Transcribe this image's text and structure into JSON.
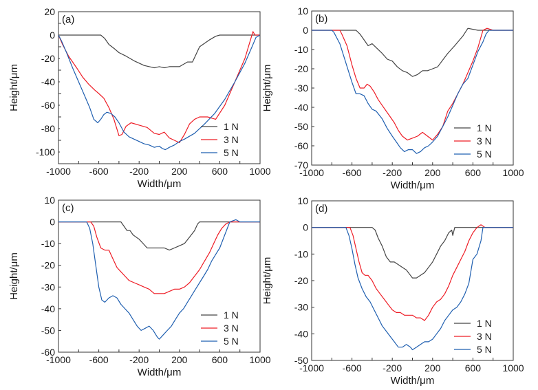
{
  "figure": {
    "xlabel": "Width/μm",
    "ylabel": "Height/μm"
  },
  "colors": {
    "1 N": "#444444",
    "3 N": "#ee1c25",
    "5 N": "#1f5fb0"
  },
  "chart_data": [
    {
      "panel": "(a)",
      "type": "line",
      "xlabel": "Width/μm",
      "ylabel": "Height/μm",
      "xlim": [
        -1000,
        1000
      ],
      "ylim": [
        -110,
        20
      ],
      "xticks": [
        "-1000",
        "-600",
        "-200",
        "200",
        "600",
        "1000"
      ],
      "yticks": [
        "20",
        "0",
        "-20",
        "-40",
        "-60",
        "-80",
        "-100"
      ],
      "legend_position": "bottom-right",
      "series": [
        {
          "name": "1 N",
          "x": [
            -1000,
            -650,
            -580,
            -540,
            -500,
            -440,
            -400,
            -330,
            -250,
            -150,
            -50,
            0,
            50,
            100,
            150,
            200,
            280,
            330,
            400,
            500,
            560,
            600,
            900,
            1000
          ],
          "y": [
            0,
            0,
            0,
            -3,
            -8,
            -12,
            -15,
            -18,
            -22,
            -26,
            -28,
            -27,
            -28,
            -27,
            -27,
            -27,
            -23,
            -23,
            -10,
            -4,
            -1,
            0,
            0,
            0
          ]
        },
        {
          "name": "3 N",
          "x": [
            -1000,
            -960,
            -900,
            -820,
            -760,
            -700,
            -640,
            -600,
            -550,
            -500,
            -450,
            -400,
            -370,
            -330,
            -280,
            -200,
            -120,
            -50,
            0,
            50,
            100,
            150,
            200,
            250,
            300,
            350,
            400,
            480,
            560,
            650,
            750,
            850,
            930,
            950,
            980,
            1000
          ],
          "y": [
            0,
            -8,
            -18,
            -28,
            -36,
            -42,
            -47,
            -50,
            -54,
            -62,
            -72,
            -86,
            -85,
            -78,
            -75,
            -77,
            -79,
            -84,
            -85,
            -83,
            -88,
            -90,
            -92,
            -85,
            -76,
            -72,
            -70,
            -70,
            -72,
            -60,
            -40,
            -20,
            3,
            0,
            0,
            0
          ]
        },
        {
          "name": "5 N",
          "x": [
            -1000,
            -970,
            -920,
            -860,
            -800,
            -740,
            -690,
            -650,
            -610,
            -580,
            -550,
            -520,
            -480,
            -440,
            -400,
            -350,
            -300,
            -250,
            -200,
            -150,
            -100,
            -50,
            0,
            30,
            60,
            100,
            150,
            200,
            250,
            350,
            450,
            550,
            650,
            750,
            850,
            920,
            960,
            1000
          ],
          "y": [
            0,
            -5,
            -15,
            -28,
            -40,
            -52,
            -62,
            -72,
            -75,
            -72,
            -68,
            -66,
            -67,
            -70,
            -75,
            -83,
            -87,
            -89,
            -91,
            -93,
            -94,
            -96,
            -95,
            -97,
            -98,
            -96,
            -94,
            -91,
            -89,
            -84,
            -76,
            -67,
            -55,
            -40,
            -24,
            -10,
            -2,
            0
          ]
        }
      ]
    },
    {
      "panel": "(b)",
      "type": "line",
      "xlabel": "Width/μm",
      "ylabel": "Height/μm",
      "xlim": [
        -1000,
        1000
      ],
      "ylim": [
        -70,
        10
      ],
      "xticks": [
        "-1000",
        "-600",
        "-200",
        "200",
        "600",
        "1000"
      ],
      "yticks": [
        "10",
        "0",
        "-10",
        "-20",
        "-30",
        "-40",
        "-50",
        "-60",
        "-70"
      ],
      "legend_position": "bottom-right",
      "series": [
        {
          "name": "1 N",
          "x": [
            -1000,
            -620,
            -560,
            -520,
            -480,
            -440,
            -400,
            -360,
            -300,
            -250,
            -200,
            -150,
            -100,
            -50,
            0,
            50,
            100,
            150,
            200,
            250,
            350,
            420,
            500,
            550,
            650,
            800,
            1000
          ],
          "y": [
            0,
            0,
            0,
            -2,
            -5,
            -8,
            -7,
            -9,
            -12,
            -15,
            -16,
            -19,
            -21,
            -22,
            -24,
            -23,
            -21,
            -21,
            -20,
            -19,
            -12,
            -8,
            -3,
            1,
            0,
            0,
            0
          ]
        },
        {
          "name": "3 N",
          "x": [
            -1000,
            -720,
            -700,
            -650,
            -600,
            -560,
            -520,
            -480,
            -450,
            -420,
            -380,
            -340,
            -300,
            -260,
            -220,
            -180,
            -140,
            -100,
            -50,
            0,
            50,
            100,
            150,
            200,
            250,
            300,
            350,
            400,
            450,
            500,
            550,
            600,
            650,
            700,
            740,
            800,
            1000
          ],
          "y": [
            0,
            0,
            -2,
            -8,
            -18,
            -25,
            -30,
            -30,
            -28,
            -29,
            -32,
            -36,
            -39,
            -42,
            -45,
            -48,
            -52,
            -55,
            -57,
            -56,
            -55,
            -53,
            -55,
            -57,
            -54,
            -50,
            -42,
            -38,
            -33,
            -28,
            -22,
            -16,
            -9,
            0,
            1,
            0,
            0
          ]
        },
        {
          "name": "5 N",
          "x": [
            -1000,
            -800,
            -780,
            -720,
            -660,
            -600,
            -560,
            -520,
            -480,
            -440,
            -400,
            -360,
            -300,
            -250,
            -200,
            -160,
            -120,
            -80,
            -40,
            0,
            40,
            80,
            120,
            160,
            200,
            250,
            300,
            350,
            400,
            450,
            500,
            550,
            600,
            650,
            700,
            730,
            760,
            800,
            1000
          ],
          "y": [
            0,
            0,
            -1,
            -7,
            -17,
            -27,
            -33,
            -33,
            -34,
            -38,
            -41,
            -42,
            -46,
            -51,
            -55,
            -58,
            -61,
            -63,
            -62,
            -62,
            -64,
            -63,
            -61,
            -60,
            -58,
            -55,
            -50,
            -45,
            -39,
            -33,
            -28,
            -25,
            -18,
            -11,
            -6,
            -2,
            0,
            0,
            0
          ]
        }
      ]
    },
    {
      "panel": "(c)",
      "type": "line",
      "xlabel": "Width/μm",
      "ylabel": "Height/μm",
      "xlim": [
        -1000,
        1000
      ],
      "ylim": [
        -60,
        10
      ],
      "xticks": [
        "-1000",
        "-600",
        "-200",
        "200",
        "600",
        "1000"
      ],
      "yticks": [
        "10",
        "0",
        "-10",
        "-20",
        "-30",
        "-40",
        "-50",
        "-60"
      ],
      "legend_position": "bottom-right",
      "series": [
        {
          "name": "1 N",
          "x": [
            -1000,
            -380,
            -350,
            -320,
            -290,
            -260,
            -230,
            -200,
            -160,
            -120,
            -80,
            -40,
            0,
            50,
            100,
            150,
            200,
            250,
            300,
            350,
            380,
            400,
            700,
            1000
          ],
          "y": [
            0,
            0,
            -2,
            -4,
            -4,
            -6,
            -7,
            -8,
            -10,
            -12,
            -12,
            -12,
            -12,
            -12,
            -13,
            -12,
            -11,
            -10,
            -7,
            -4,
            -1,
            0,
            0,
            0
          ]
        },
        {
          "name": "3 N",
          "x": [
            -1000,
            -680,
            -650,
            -620,
            -580,
            -540,
            -500,
            -460,
            -420,
            -380,
            -340,
            -300,
            -250,
            -200,
            -150,
            -100,
            -50,
            0,
            50,
            100,
            150,
            200,
            250,
            300,
            350,
            400,
            450,
            500,
            540,
            580,
            620,
            660,
            700,
            1000
          ],
          "y": [
            0,
            0,
            -2,
            -7,
            -12,
            -13,
            -13,
            -17,
            -21,
            -23,
            -25,
            -27,
            -28,
            -29,
            -30,
            -31,
            -33,
            -33,
            -33,
            -32,
            -31,
            -31,
            -30,
            -28,
            -25,
            -22,
            -18,
            -14,
            -10,
            -6,
            -3,
            -1,
            0,
            0
          ]
        },
        {
          "name": "5 N",
          "x": [
            -1000,
            -720,
            -690,
            -660,
            -630,
            -600,
            -570,
            -540,
            -500,
            -460,
            -420,
            -380,
            -340,
            -300,
            -260,
            -220,
            -180,
            -140,
            -100,
            -60,
            -20,
            0,
            40,
            80,
            120,
            160,
            200,
            240,
            280,
            320,
            360,
            400,
            440,
            480,
            520,
            560,
            600,
            650,
            700,
            760,
            800,
            1000
          ],
          "y": [
            0,
            0,
            -3,
            -10,
            -20,
            -30,
            -36,
            -37,
            -35,
            -34,
            -35,
            -38,
            -40,
            -42,
            -45,
            -48,
            -50,
            -49,
            -48,
            -50,
            -53,
            -54,
            -52,
            -50,
            -48,
            -45,
            -42,
            -40,
            -37,
            -34,
            -31,
            -28,
            -25,
            -22,
            -18,
            -15,
            -12,
            -6,
            0,
            1,
            0,
            0
          ]
        }
      ]
    },
    {
      "panel": "(d)",
      "type": "line",
      "xlabel": "Width/μm",
      "ylabel": "Height/μm",
      "xlim": [
        -1000,
        1000
      ],
      "ylim": [
        -50,
        10
      ],
      "xticks": [
        "-1000",
        "-600",
        "-200",
        "200",
        "600",
        "1000"
      ],
      "yticks": [
        "10",
        "0",
        "-10",
        "-20",
        "-30",
        "-40",
        "-50"
      ],
      "legend_position": "bottom-right",
      "series": [
        {
          "name": "1 N",
          "x": [
            -1000,
            -400,
            -370,
            -340,
            -300,
            -260,
            -220,
            -180,
            -140,
            -100,
            -60,
            -20,
            0,
            40,
            80,
            120,
            160,
            200,
            240,
            280,
            320,
            360,
            390,
            400,
            420,
            700,
            1000
          ],
          "y": [
            0,
            0,
            -1,
            -4,
            -7,
            -11,
            -13,
            -13,
            -14,
            -15,
            -16,
            -18,
            -19,
            -19,
            -18,
            -17,
            -15,
            -13,
            -10,
            -7,
            -5,
            -2,
            -1,
            -3,
            0,
            0,
            0
          ]
        },
        {
          "name": "3 N",
          "x": [
            -1000,
            -620,
            -590,
            -560,
            -530,
            -500,
            -470,
            -440,
            -400,
            -360,
            -320,
            -280,
            -240,
            -200,
            -160,
            -120,
            -80,
            -40,
            0,
            40,
            80,
            120,
            160,
            200,
            240,
            280,
            320,
            360,
            400,
            440,
            480,
            520,
            560,
            600,
            640,
            680,
            720,
            1000
          ],
          "y": [
            0,
            0,
            -3,
            -8,
            -13,
            -17,
            -18,
            -18,
            -20,
            -23,
            -25,
            -27,
            -29,
            -31,
            -32,
            -32,
            -33,
            -33,
            -33,
            -34,
            -34,
            -35,
            -33,
            -30,
            -28,
            -27,
            -25,
            -22,
            -18,
            -15,
            -12,
            -9,
            -5,
            -2,
            0,
            1,
            0,
            0
          ]
        },
        {
          "name": "5 N",
          "x": [
            -1000,
            -660,
            -630,
            -600,
            -570,
            -540,
            -500,
            -460,
            -420,
            -380,
            -340,
            -300,
            -260,
            -220,
            -180,
            -140,
            -100,
            -60,
            -20,
            0,
            40,
            80,
            120,
            160,
            200,
            240,
            280,
            320,
            360,
            400,
            440,
            480,
            520,
            560,
            600,
            640,
            680,
            700,
            720,
            1000
          ],
          "y": [
            0,
            0,
            -3,
            -8,
            -14,
            -19,
            -23,
            -26,
            -28,
            -31,
            -34,
            -37,
            -39,
            -41,
            -43,
            -45,
            -45,
            -44,
            -45,
            -46,
            -45,
            -44,
            -43,
            -43,
            -42,
            -40,
            -38,
            -35,
            -33,
            -31,
            -30,
            -28,
            -25,
            -21,
            -12,
            -10,
            -5,
            0,
            0,
            0
          ]
        }
      ]
    }
  ]
}
